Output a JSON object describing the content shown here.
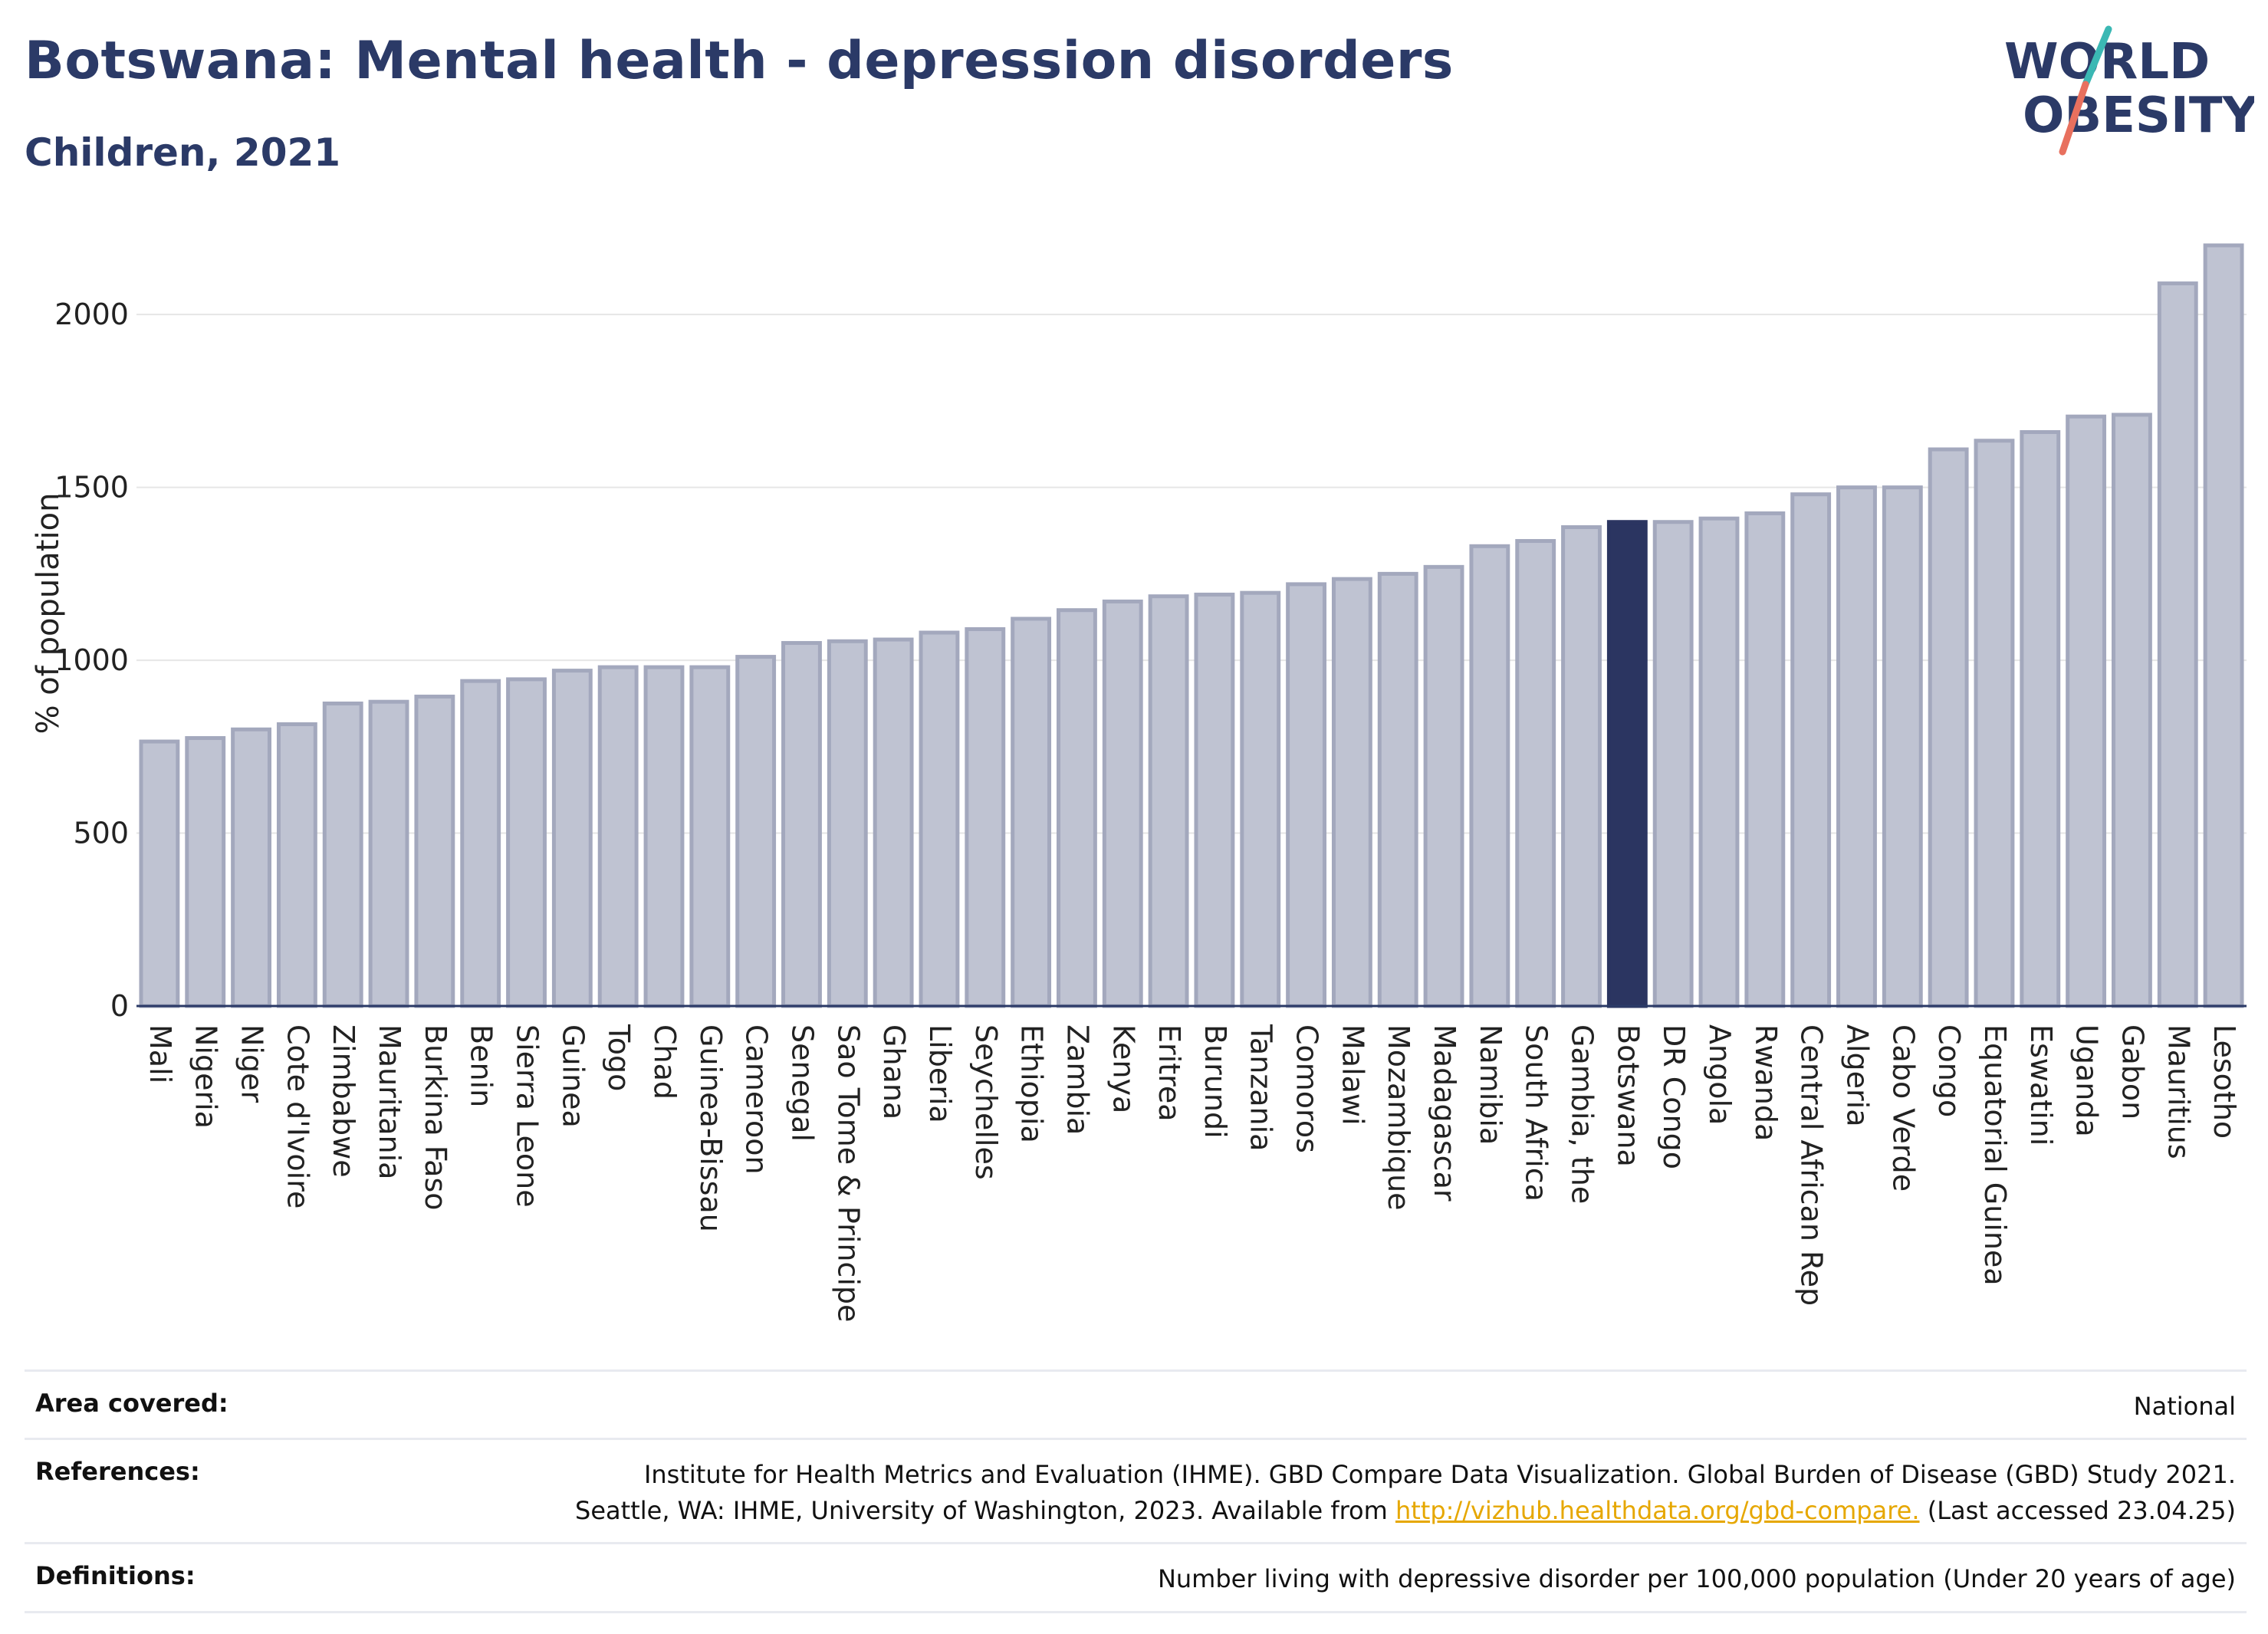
{
  "header": {
    "title": "Botswana: Mental health - depression disorders",
    "subtitle": "Children, 2021"
  },
  "logo": {
    "line1": "WORLD",
    "line2": "OBESITY"
  },
  "colors": {
    "title": "#2b3a67",
    "bar": "#bfc3d2",
    "bar_border": "#a3a8bd",
    "highlight": "#2b3561",
    "grid": "#e6e6e6",
    "link": "#e6a700",
    "logo_teal": "#3bb8b4",
    "logo_coral": "#e8705e"
  },
  "chart_data": {
    "type": "bar",
    "ylabel": "% of population",
    "ylim": [
      0,
      2200
    ],
    "yticks": [
      0,
      500,
      1000,
      1500,
      2000
    ],
    "grid": true,
    "highlight": "Botswana",
    "categories": [
      "Mali",
      "Nigeria",
      "Niger",
      "Cote d'Ivoire",
      "Zimbabwe",
      "Mauritania",
      "Burkina Faso",
      "Benin",
      "Sierra Leone",
      "Guinea",
      "Togo",
      "Chad",
      "Guinea-Bissau",
      "Cameroon",
      "Senegal",
      "Sao Tome & Principe",
      "Ghana",
      "Liberia",
      "Seychelles",
      "Ethiopia",
      "Zambia",
      "Kenya",
      "Eritrea",
      "Burundi",
      "Tanzania",
      "Comoros",
      "Malawi",
      "Mozambique",
      "Madagascar",
      "Namibia",
      "South Africa",
      "Gambia, the",
      "Botswana",
      "DR Congo",
      "Angola",
      "Rwanda",
      "Central African Rep",
      "Algeria",
      "Cabo Verde",
      "Congo",
      "Equatorial Guinea",
      "Eswatini",
      "Uganda",
      "Gabon",
      "Mauritius",
      "Lesotho"
    ],
    "values": [
      765,
      775,
      800,
      815,
      875,
      880,
      895,
      940,
      945,
      970,
      980,
      980,
      980,
      1010,
      1050,
      1055,
      1060,
      1080,
      1090,
      1120,
      1145,
      1170,
      1185,
      1190,
      1195,
      1220,
      1235,
      1250,
      1270,
      1330,
      1345,
      1385,
      1400,
      1400,
      1410,
      1425,
      1480,
      1500,
      1500,
      1610,
      1635,
      1660,
      1705,
      1710,
      2090,
      2200
    ]
  },
  "footer": {
    "area_label": "Area covered:",
    "area_value": "National",
    "references_label": "References:",
    "references_line1": "Institute for Health Metrics and Evaluation (IHME). GBD Compare Data Visualization. Global Burden of Disease (GBD) Study 2021.",
    "references_line2_pre": "Seattle, WA: IHME, University of Washington, 2023. Available from ",
    "references_link": "http://vizhub.healthdata.org/gbd-compare.",
    "references_line2_post": " (Last accessed 23.04.25)",
    "definitions_label": "Definitions:",
    "definitions_value": "Number living with depressive disorder per 100,000 population (Under 20 years of age)"
  }
}
